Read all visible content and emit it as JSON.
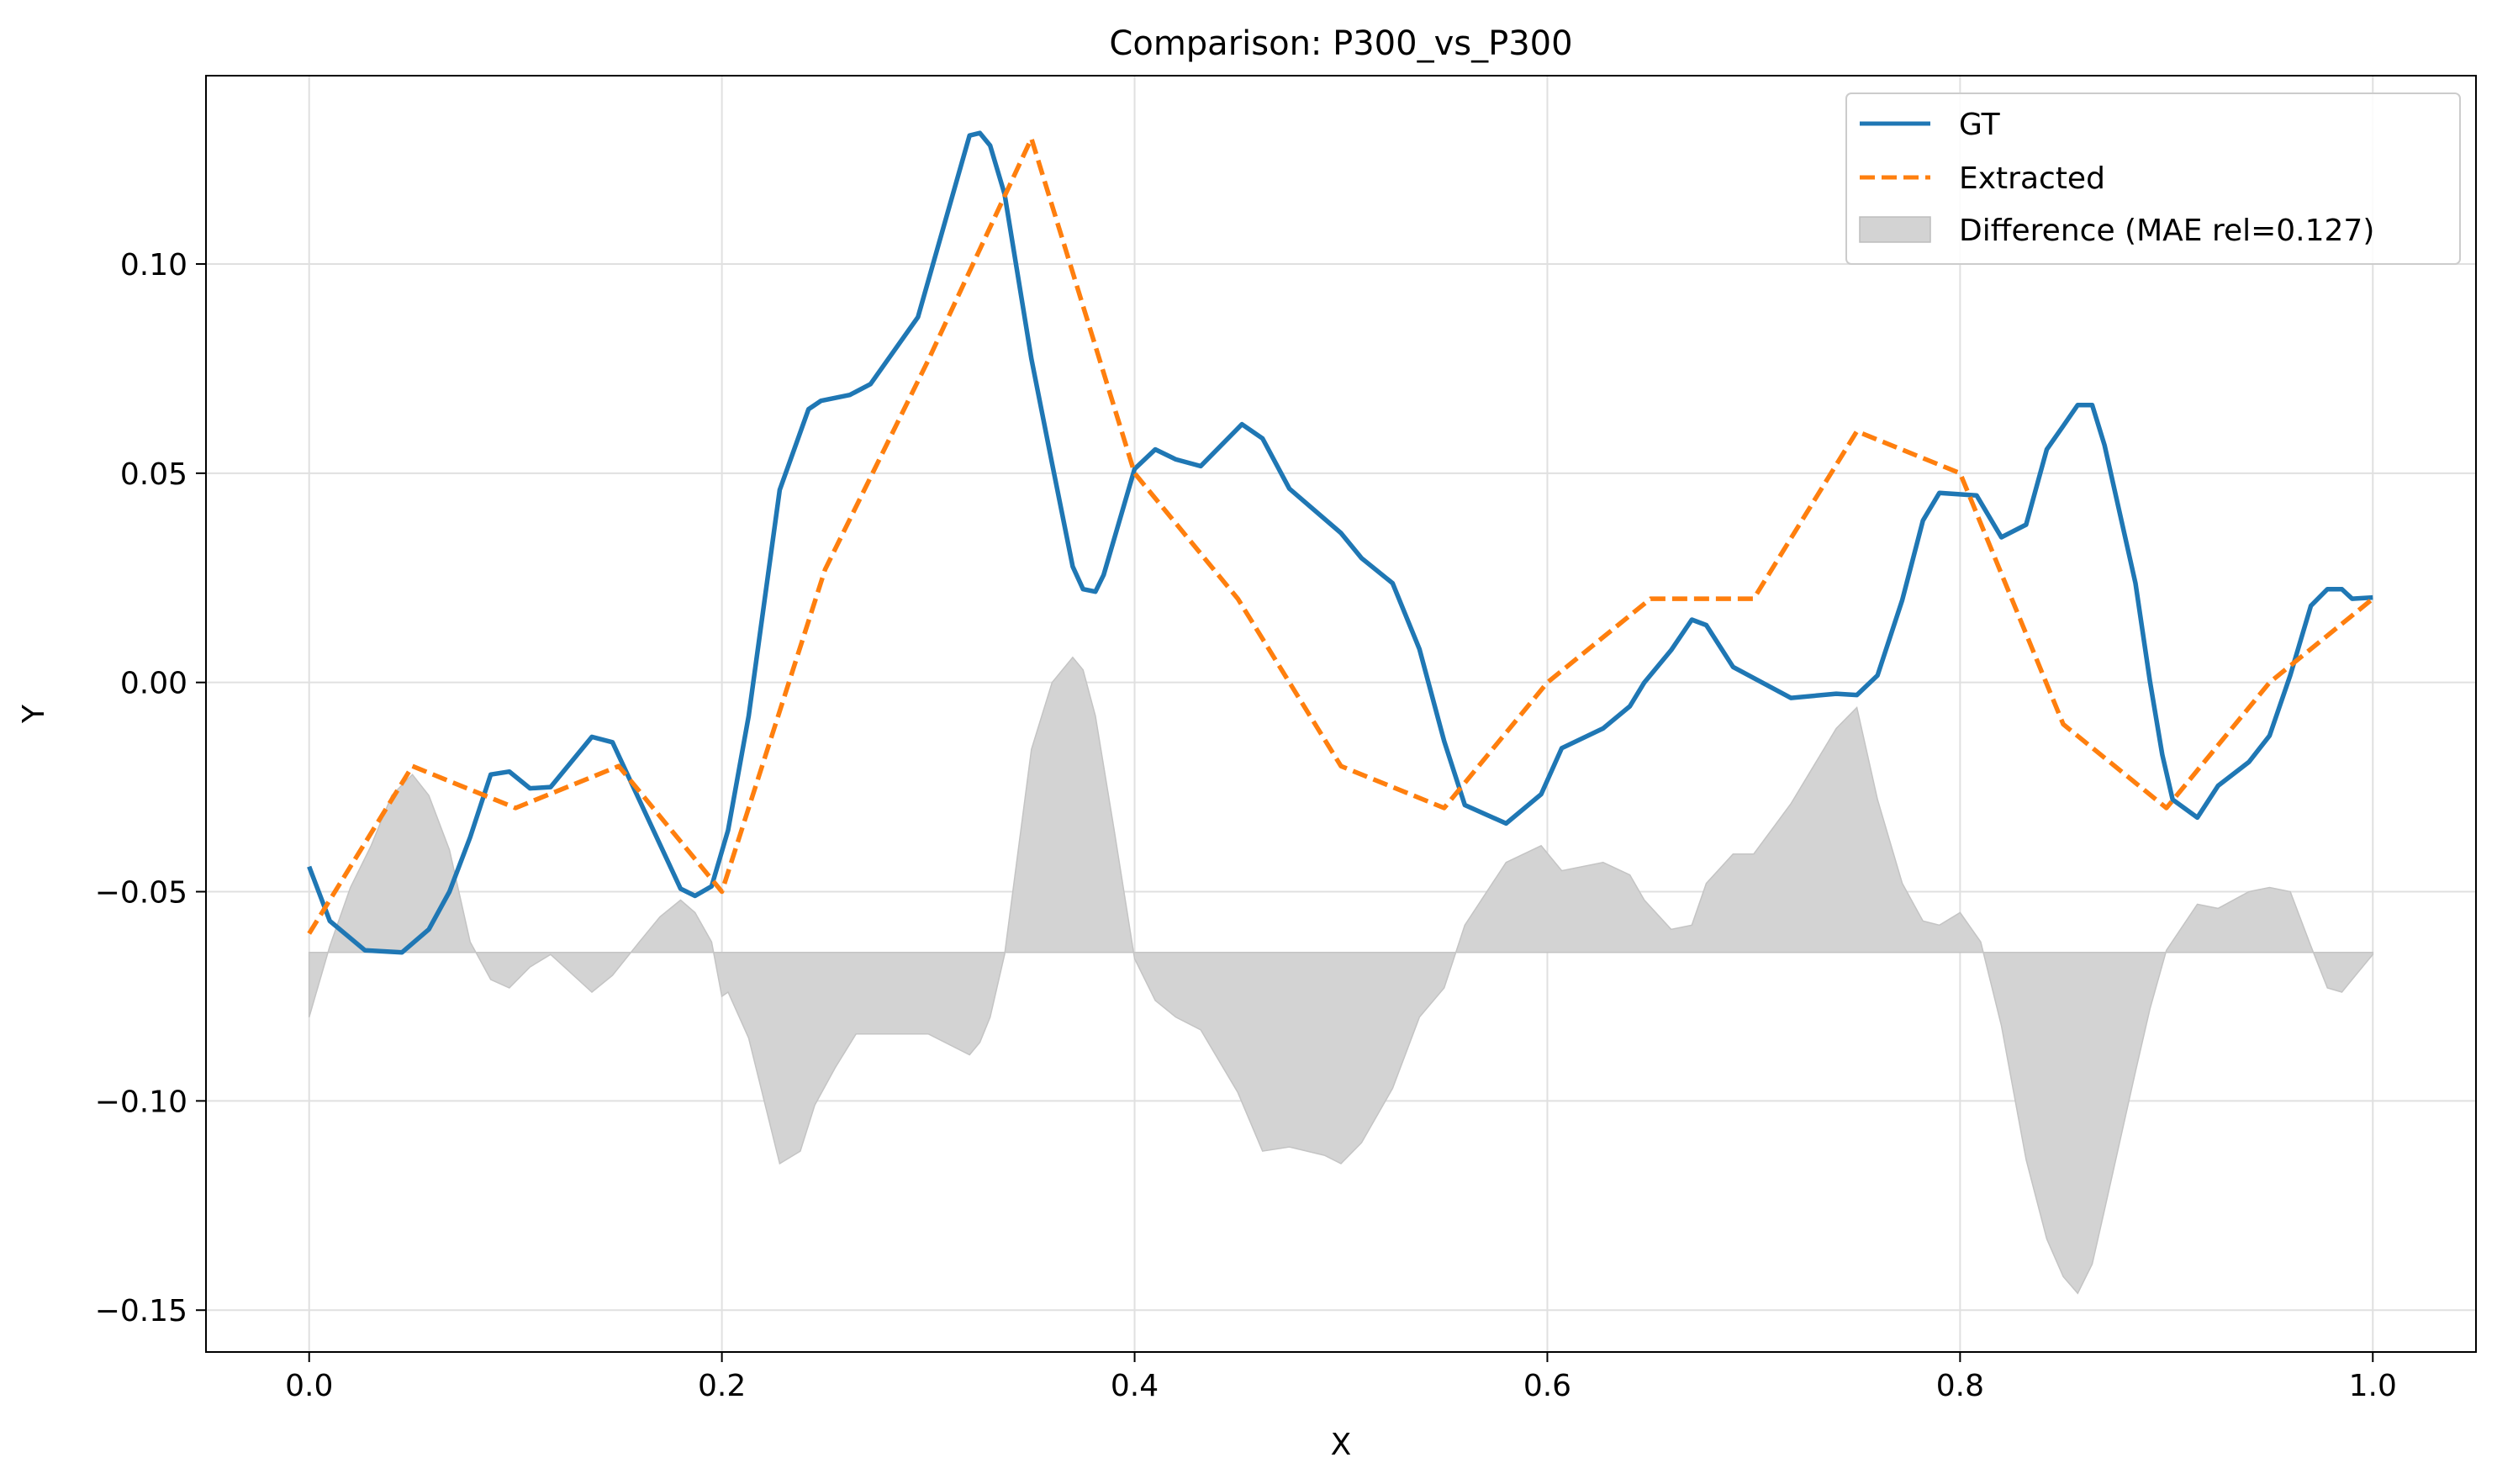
{
  "chart_data": {
    "type": "line",
    "title": "Comparison: P300_vs_P300",
    "xlabel": "X",
    "ylabel": "Y",
    "xlim": [
      -0.05,
      1.05
    ],
    "ylim": [
      -0.16,
      0.145
    ],
    "xticks": [
      0.0,
      0.2,
      0.4,
      0.6,
      0.8,
      1.0
    ],
    "xtick_labels": [
      "0.0",
      "0.2",
      "0.4",
      "0.6",
      "0.8",
      "1.0"
    ],
    "yticks": [
      -0.15,
      -0.1,
      -0.05,
      0.0,
      0.05,
      0.1
    ],
    "ytick_labels": [
      "−0.15",
      "−0.10",
      "−0.05",
      "0.00",
      "0.05",
      "0.10"
    ],
    "grid": true,
    "legend_position": "upper right",
    "series": [
      {
        "name": "GT",
        "style": "solid",
        "color": "#1f77b4",
        "x": [
          0.0,
          0.01,
          0.027,
          0.045,
          0.058,
          0.068,
          0.078,
          0.088,
          0.097,
          0.107,
          0.117,
          0.137,
          0.147,
          0.18,
          0.187,
          0.195,
          0.203,
          0.213,
          0.228,
          0.242,
          0.248,
          0.262,
          0.272,
          0.295,
          0.32,
          0.325,
          0.33,
          0.337,
          0.35,
          0.36,
          0.37,
          0.375,
          0.381,
          0.385,
          0.4,
          0.41,
          0.42,
          0.432,
          0.452,
          0.462,
          0.475,
          0.5,
          0.51,
          0.525,
          0.538,
          0.55,
          0.56,
          0.58,
          0.597,
          0.607,
          0.627,
          0.64,
          0.647,
          0.66,
          0.67,
          0.677,
          0.69,
          0.718,
          0.74,
          0.75,
          0.76,
          0.772,
          0.782,
          0.79,
          0.808,
          0.82,
          0.832,
          0.842,
          0.85,
          0.857,
          0.864,
          0.87,
          0.885,
          0.892,
          0.898,
          0.903,
          0.915,
          0.925,
          0.94,
          0.95,
          0.96,
          0.97,
          0.978,
          0.985,
          0.99,
          1.0
        ],
        "y": [
          -0.044,
          -0.057,
          -0.064,
          -0.0645,
          -0.059,
          -0.05,
          -0.037,
          -0.022,
          -0.0213,
          -0.0253,
          -0.025,
          -0.013,
          -0.0143,
          -0.0493,
          -0.051,
          -0.0487,
          -0.0353,
          -0.008,
          0.046,
          0.0653,
          0.0673,
          0.0687,
          0.0713,
          0.0873,
          0.1307,
          0.1313,
          0.1283,
          0.1167,
          0.0773,
          0.0523,
          0.0277,
          0.0223,
          0.0217,
          0.0257,
          0.051,
          0.0557,
          0.0533,
          0.0517,
          0.0617,
          0.0583,
          0.0463,
          0.0357,
          0.0297,
          0.0237,
          0.008,
          -0.014,
          -0.0293,
          -0.0337,
          -0.0267,
          -0.0157,
          -0.011,
          -0.0057,
          0.0,
          0.0077,
          0.015,
          0.0137,
          0.0037,
          -0.0037,
          -0.0027,
          -0.003,
          0.0017,
          0.0197,
          0.0387,
          0.0453,
          0.0447,
          0.0347,
          0.0377,
          0.0557,
          0.0613,
          0.0663,
          0.0663,
          0.0567,
          0.0237,
          0.0003,
          -0.0173,
          -0.028,
          -0.0323,
          -0.0247,
          -0.019,
          -0.0127,
          0.0017,
          0.0183,
          0.0223,
          0.0223,
          0.02,
          0.0203
        ]
      },
      {
        "name": "Extracted",
        "style": "dashed",
        "color": "#ff7f0e",
        "x": [
          0.0,
          0.05,
          0.1,
          0.15,
          0.2,
          0.25,
          0.3,
          0.35,
          0.4,
          0.45,
          0.5,
          0.55,
          0.6,
          0.65,
          0.7,
          0.75,
          0.8,
          0.85,
          0.9,
          0.95,
          1.0
        ],
        "y": [
          -0.06,
          -0.02,
          -0.03,
          -0.02,
          -0.05,
          0.027,
          0.077,
          0.13,
          0.05,
          0.02,
          -0.02,
          -0.03,
          0.0,
          0.02,
          0.02,
          0.06,
          0.05,
          -0.01,
          -0.03,
          0.0,
          0.02
        ]
      },
      {
        "name": "Difference (MAE rel=0.127)",
        "style": "fill",
        "color": "#d3d3d3",
        "baseline": -0.0645,
        "x": [
          0.0,
          0.01,
          0.02,
          0.03,
          0.04,
          0.05,
          0.058,
          0.068,
          0.078,
          0.088,
          0.097,
          0.107,
          0.117,
          0.137,
          0.147,
          0.16,
          0.17,
          0.18,
          0.187,
          0.195,
          0.2,
          0.203,
          0.213,
          0.228,
          0.238,
          0.245,
          0.255,
          0.265,
          0.3,
          0.32,
          0.325,
          0.33,
          0.337,
          0.35,
          0.36,
          0.37,
          0.375,
          0.381,
          0.39,
          0.4,
          0.41,
          0.42,
          0.432,
          0.45,
          0.462,
          0.475,
          0.492,
          0.5,
          0.51,
          0.525,
          0.538,
          0.55,
          0.56,
          0.58,
          0.597,
          0.607,
          0.627,
          0.64,
          0.647,
          0.66,
          0.67,
          0.677,
          0.69,
          0.7,
          0.718,
          0.74,
          0.75,
          0.76,
          0.772,
          0.782,
          0.79,
          0.8,
          0.81,
          0.82,
          0.832,
          0.842,
          0.85,
          0.857,
          0.864,
          0.87,
          0.885,
          0.892,
          0.9,
          0.915,
          0.925,
          0.94,
          0.95,
          0.96,
          0.97,
          0.978,
          0.985,
          0.99,
          1.0
        ],
        "y": [
          -0.08,
          -0.063,
          -0.049,
          -0.039,
          -0.027,
          -0.022,
          -0.027,
          -0.04,
          -0.062,
          -0.071,
          -0.073,
          -0.068,
          -0.065,
          -0.074,
          -0.07,
          -0.062,
          -0.056,
          -0.052,
          -0.055,
          -0.062,
          -0.075,
          -0.074,
          -0.085,
          -0.115,
          -0.112,
          -0.101,
          -0.092,
          -0.084,
          -0.084,
          -0.089,
          -0.086,
          -0.08,
          -0.065,
          -0.016,
          0.0,
          0.006,
          0.003,
          -0.008,
          -0.035,
          -0.066,
          -0.076,
          -0.08,
          -0.083,
          -0.098,
          -0.112,
          -0.111,
          -0.113,
          -0.115,
          -0.11,
          -0.097,
          -0.08,
          -0.073,
          -0.058,
          -0.043,
          -0.039,
          -0.045,
          -0.043,
          -0.046,
          -0.052,
          -0.059,
          -0.058,
          -0.048,
          -0.041,
          -0.041,
          -0.029,
          -0.011,
          -0.006,
          -0.028,
          -0.048,
          -0.057,
          -0.058,
          -0.055,
          -0.062,
          -0.082,
          -0.114,
          -0.133,
          -0.142,
          -0.146,
          -0.139,
          -0.126,
          -0.093,
          -0.078,
          -0.064,
          -0.053,
          -0.054,
          -0.05,
          -0.049,
          -0.05,
          -0.063,
          -0.073,
          -0.074,
          -0.071,
          -0.065
        ]
      }
    ]
  }
}
